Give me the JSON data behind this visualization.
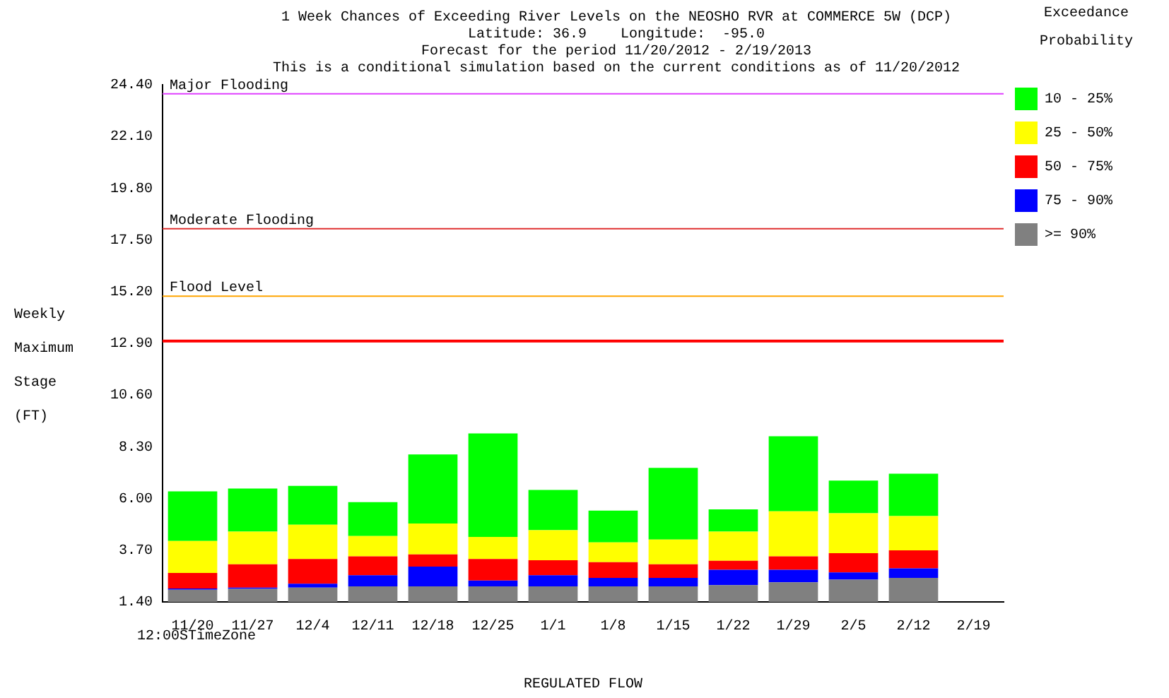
{
  "chart_data": {
    "type": "bar",
    "title": "1 Week Chances of Exceeding River Levels on the NEOSHO RVR at COMMERCE 5W (DCP)",
    "subtitle": "Latitude: 36.9    Longitude:  -95.0\nForecast for the period 11/20/2012 - 2/19/2013\nThis is a conditional simulation based on the current conditions as of 11/20/2012",
    "xlabel": "REGULATED FLOW",
    "ylabel": "Weekly Maximum Stage (FT)",
    "legend_title": "Exceedance Probability",
    "legend": "right",
    "grid": false,
    "categories": [
      "11/20",
      "11/27",
      "12/4",
      "12/11",
      "12/18",
      "12/25",
      "1/1",
      "1/8",
      "1/15",
      "1/22",
      "1/29",
      "2/5",
      "2/12",
      "2/19"
    ],
    "series": [
      {
        "name": ">= 90%",
        "color": "#808080",
        "values": [
          0.54,
          0.58,
          0.64,
          0.69,
          0.69,
          0.69,
          0.69,
          0.69,
          0.69,
          0.75,
          0.87,
          0.99,
          1.07,
          null
        ],
        "base": [
          1.4,
          1.4,
          1.4,
          1.4,
          1.4,
          1.4,
          1.4,
          1.4,
          1.4,
          1.4,
          1.4,
          1.4,
          1.4,
          null
        ]
      },
      {
        "name": "75 - 90%",
        "color": "#0000ff",
        "base": [
          1.94,
          1.98,
          2.04,
          2.09,
          2.09,
          2.09,
          2.09,
          2.09,
          2.09,
          2.15,
          2.27,
          2.39,
          2.47,
          null
        ],
        "values": [
          0.06,
          0.06,
          0.17,
          0.5,
          0.88,
          0.26,
          0.5,
          0.38,
          0.38,
          0.68,
          0.56,
          0.32,
          0.42,
          null
        ]
      },
      {
        "name": "50 - 75%",
        "color": "#ff0000",
        "base": [
          2.0,
          2.04,
          2.21,
          2.59,
          2.97,
          2.35,
          2.59,
          2.47,
          2.47,
          2.83,
          2.83,
          2.71,
          2.89,
          null
        ],
        "values": [
          0.69,
          1.03,
          1.1,
          0.84,
          0.54,
          0.96,
          0.66,
          0.7,
          0.6,
          0.4,
          0.6,
          0.86,
          0.8,
          null
        ]
      },
      {
        "name": "25 - 50%",
        "color": "#ffff00",
        "base": [
          2.69,
          3.07,
          3.31,
          3.43,
          3.51,
          3.31,
          3.25,
          3.17,
          3.07,
          3.23,
          3.43,
          3.57,
          3.69,
          null
        ],
        "values": [
          1.42,
          1.46,
          1.52,
          0.9,
          1.38,
          0.98,
          1.34,
          0.88,
          1.1,
          1.3,
          2.0,
          1.77,
          1.53,
          null
        ]
      },
      {
        "name": "10 - 25%",
        "color": "#00ff00",
        "base": [
          4.11,
          4.53,
          4.83,
          4.33,
          4.89,
          4.29,
          4.59,
          4.05,
          4.17,
          4.53,
          5.43,
          5.34,
          5.22,
          null
        ],
        "values": [
          2.21,
          1.91,
          1.73,
          1.51,
          3.07,
          4.6,
          1.79,
          1.41,
          3.19,
          0.99,
          3.34,
          1.46,
          1.88,
          null
        ]
      }
    ],
    "ylim": [
      1.4,
      24.4
    ],
    "yticks": [
      {
        "value": 1.4,
        "label": "1.40"
      },
      {
        "value": 3.7,
        "label": "3.70"
      },
      {
        "value": 6,
        "label": "6.00"
      },
      {
        "value": 8.3,
        "label": "8.30"
      },
      {
        "value": 10.6,
        "label": "10.60"
      },
      {
        "value": 12.9,
        "label": "12.90"
      },
      {
        "value": 15.2,
        "label": "15.20"
      },
      {
        "value": 17.5,
        "label": "17.50"
      },
      {
        "value": 19.8,
        "label": "19.80"
      },
      {
        "value": 22.1,
        "label": "22.10"
      },
      {
        "value": 24.4,
        "label": "24.40"
      }
    ],
    "ref_lines": [
      {
        "axis": "y",
        "value": 24,
        "label": "Major Flooding",
        "color": "#e040ff"
      },
      {
        "axis": "y",
        "value": 18,
        "label": "Moderate Flooding",
        "color": "#e03030"
      },
      {
        "axis": "y",
        "value": 15,
        "label": "Flood Level",
        "color": "#ffa500"
      },
      {
        "axis": "y",
        "value": 13,
        "label": null,
        "color": "#ff0000"
      }
    ],
    "annotations": [
      "12:00STimeZone"
    ]
  }
}
